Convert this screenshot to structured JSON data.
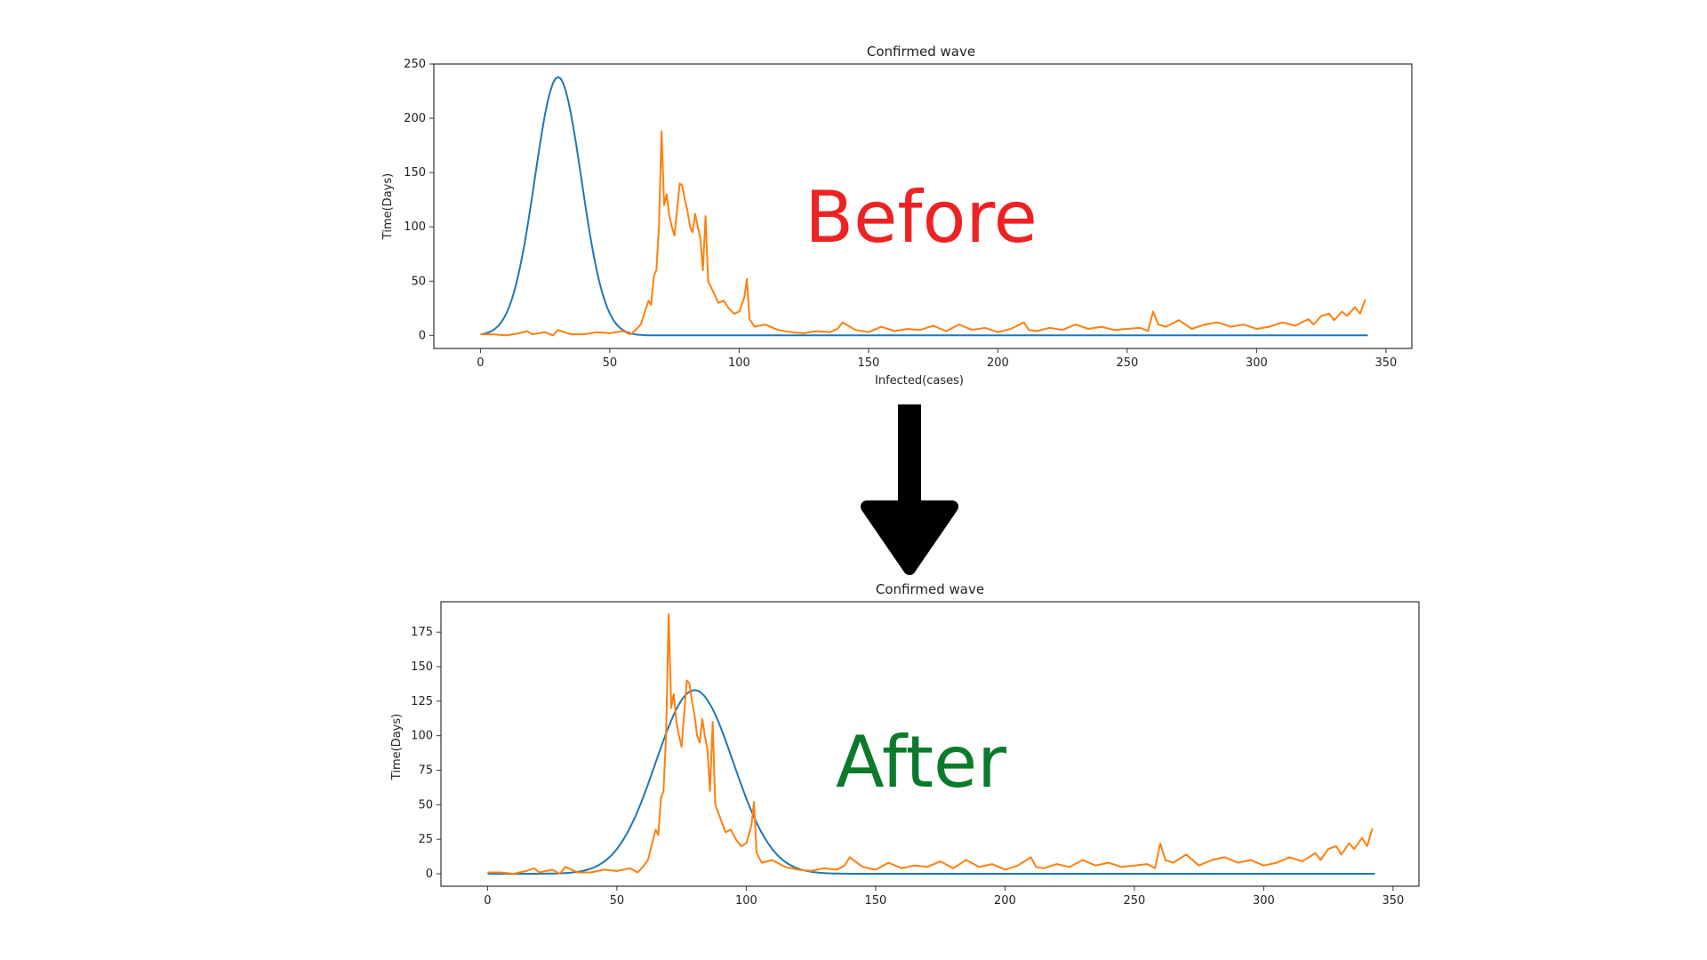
{
  "overlays": {
    "before": {
      "text": "Before",
      "color": "#ee2222"
    },
    "after": {
      "text": "After",
      "color": "#0b7a2a"
    }
  },
  "arrow": {
    "icon": "down-arrow-icon",
    "color": "#000000"
  },
  "chart_data": [
    {
      "type": "line",
      "title": "Confirmed wave",
      "xlabel": "Infected(cases)",
      "ylabel": "Time(Days)",
      "xlim": [
        -18,
        360
      ],
      "ylim": [
        -12,
        250
      ],
      "xticks": [
        0,
        50,
        100,
        150,
        200,
        250,
        300,
        350
      ],
      "yticks": [
        0,
        50,
        100,
        150,
        200,
        250
      ],
      "grid": false,
      "series": [
        {
          "model": "gaussian",
          "color": "#1f77b4",
          "peak_x": 30,
          "peak_y": 238,
          "sigma": 9,
          "x_range": [
            0,
            343
          ]
        },
        {
          "model": "observed",
          "color": "#ff7f0e",
          "x": [
            0,
            5,
            10,
            15,
            18,
            20,
            25,
            28,
            30,
            35,
            40,
            45,
            50,
            55,
            58,
            60,
            62,
            64,
            65,
            66,
            67,
            68,
            69,
            70,
            71,
            72,
            73,
            74,
            75,
            76,
            77,
            78,
            79,
            80,
            81,
            82,
            83,
            84,
            85,
            86,
            87,
            88,
            89,
            90,
            92,
            94,
            96,
            98,
            100,
            102,
            103,
            104,
            106,
            110,
            115,
            120,
            125,
            130,
            135,
            138,
            140,
            145,
            150,
            155,
            160,
            165,
            170,
            175,
            180,
            185,
            190,
            195,
            200,
            205,
            210,
            212,
            215,
            220,
            225,
            230,
            235,
            240,
            245,
            250,
            255,
            258,
            260,
            262,
            265,
            270,
            275,
            280,
            285,
            290,
            295,
            300,
            305,
            310,
            315,
            320,
            322,
            325,
            328,
            330,
            333,
            335,
            338,
            340,
            342
          ],
          "y": [
            1,
            1,
            0,
            2,
            4,
            1,
            3,
            0,
            5,
            1,
            1,
            3,
            2,
            4,
            1,
            5,
            10,
            25,
            32,
            28,
            55,
            60,
            100,
            188,
            120,
            130,
            110,
            100,
            92,
            115,
            140,
            138,
            125,
            115,
            100,
            95,
            112,
            100,
            90,
            60,
            110,
            50,
            45,
            40,
            30,
            32,
            25,
            20,
            22,
            35,
            52,
            15,
            8,
            10,
            5,
            3,
            2,
            4,
            3,
            6,
            12,
            5,
            3,
            8,
            4,
            6,
            5,
            9,
            4,
            10,
            5,
            7,
            3,
            6,
            12,
            5,
            4,
            7,
            5,
            10,
            6,
            8,
            5,
            6,
            7,
            4,
            22,
            10,
            8,
            14,
            6,
            10,
            12,
            8,
            10,
            6,
            8,
            12,
            9,
            15,
            10,
            18,
            20,
            14,
            22,
            18,
            26,
            20,
            33
          ]
        }
      ]
    },
    {
      "type": "line",
      "title": "Confirmed wave",
      "xlabel": "",
      "ylabel": "Time(Days)",
      "xlim": [
        -18,
        360
      ],
      "ylim": [
        -9,
        197
      ],
      "xticks": [
        0,
        50,
        100,
        150,
        200,
        250,
        300,
        350
      ],
      "yticks": [
        0,
        25,
        50,
        75,
        100,
        125,
        150,
        175
      ],
      "grid": false,
      "series": [
        {
          "model": "gaussian",
          "color": "#1f77b4",
          "peak_x": 80,
          "peak_y": 133,
          "sigma": 15,
          "x_range": [
            0,
            343
          ]
        },
        {
          "model": "observed",
          "color": "#ff7f0e",
          "x": [
            0,
            5,
            10,
            15,
            18,
            20,
            25,
            28,
            30,
            35,
            40,
            45,
            50,
            55,
            58,
            60,
            62,
            64,
            65,
            66,
            67,
            68,
            69,
            70,
            71,
            72,
            73,
            74,
            75,
            76,
            77,
            78,
            79,
            80,
            81,
            82,
            83,
            84,
            85,
            86,
            87,
            88,
            89,
            90,
            92,
            94,
            96,
            98,
            100,
            102,
            103,
            104,
            106,
            110,
            115,
            120,
            125,
            130,
            135,
            138,
            140,
            145,
            150,
            155,
            160,
            165,
            170,
            175,
            180,
            185,
            190,
            195,
            200,
            205,
            210,
            212,
            215,
            220,
            225,
            230,
            235,
            240,
            245,
            250,
            255,
            258,
            260,
            262,
            265,
            270,
            275,
            280,
            285,
            290,
            295,
            300,
            305,
            310,
            315,
            320,
            322,
            325,
            328,
            330,
            333,
            335,
            338,
            340,
            342
          ],
          "y": [
            1,
            1,
            0,
            2,
            4,
            1,
            3,
            0,
            5,
            1,
            1,
            3,
            2,
            4,
            1,
            5,
            10,
            25,
            32,
            28,
            55,
            60,
            100,
            188,
            120,
            130,
            110,
            100,
            92,
            115,
            140,
            138,
            125,
            115,
            100,
            95,
            112,
            100,
            90,
            60,
            110,
            50,
            45,
            40,
            30,
            32,
            25,
            20,
            22,
            35,
            52,
            15,
            8,
            10,
            5,
            3,
            2,
            4,
            3,
            6,
            12,
            5,
            3,
            8,
            4,
            6,
            5,
            9,
            4,
            10,
            5,
            7,
            3,
            6,
            12,
            5,
            4,
            7,
            5,
            10,
            6,
            8,
            5,
            6,
            7,
            4,
            22,
            10,
            8,
            14,
            6,
            10,
            12,
            8,
            10,
            6,
            8,
            12,
            9,
            15,
            10,
            18,
            20,
            14,
            22,
            18,
            26,
            20,
            33
          ]
        }
      ]
    }
  ]
}
